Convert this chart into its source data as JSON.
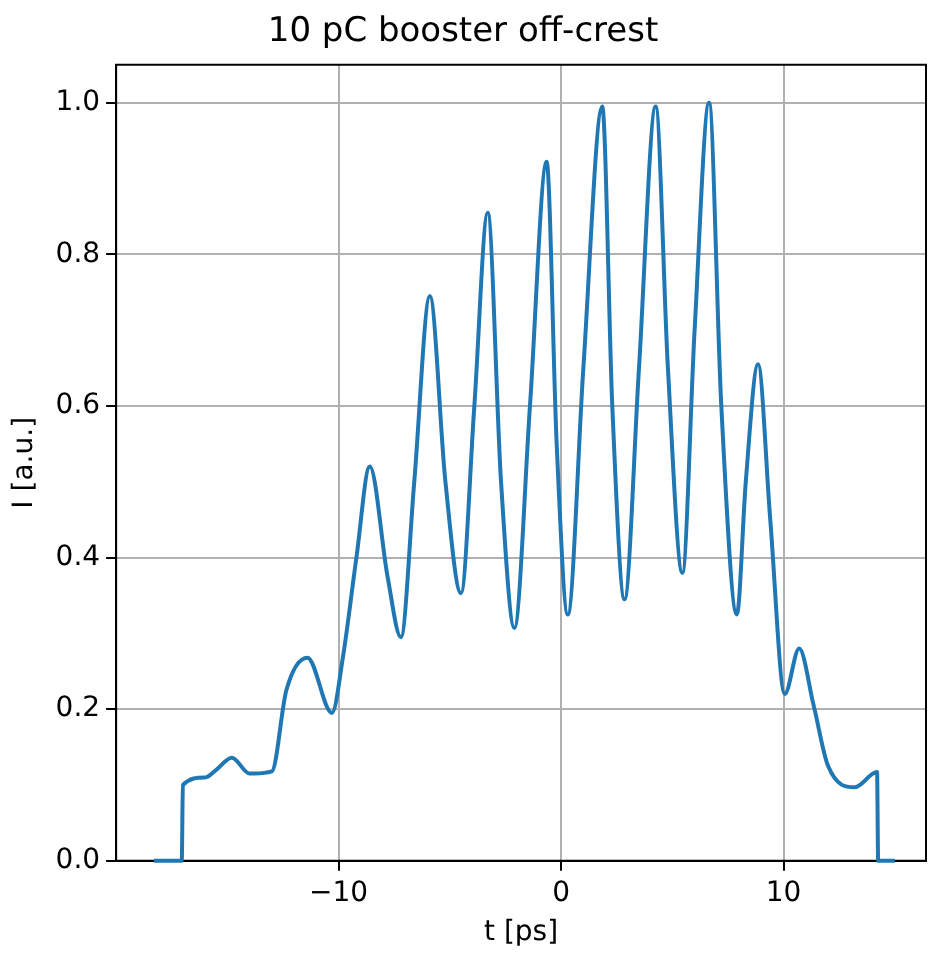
{
  "chart_data": {
    "type": "line",
    "title": "10 pC booster off-crest",
    "xlabel": "t [ps]",
    "ylabel": "I [a.u.]",
    "x": [
      -18.3,
      -17.05,
      -17.0,
      -16.0,
      -15.5,
      -14.8,
      -14.0,
      -13.0,
      -12.35,
      -11.4,
      -10.3,
      -9.8,
      -9.2,
      -8.6,
      -7.8,
      -7.2,
      -6.6,
      -5.9,
      -5.2,
      -4.5,
      -3.9,
      -3.3,
      -2.7,
      -2.1,
      -1.4,
      -0.65,
      -0.2,
      0.3,
      1.0,
      1.85,
      2.3,
      2.85,
      3.5,
      4.25,
      4.8,
      5.45,
      6.0,
      6.65,
      7.2,
      7.9,
      8.3,
      8.85,
      9.4,
      10.05,
      10.7,
      11.35,
      12.0,
      13.2,
      14.2,
      14.25,
      15.0
    ],
    "series": [
      {
        "color": "#1f77b4",
        "values": [
          0,
          0,
          0.1,
          0.11,
          0.12,
          0.136,
          0.115,
          0.118,
          0.225,
          0.268,
          0.195,
          0.27,
          0.4,
          0.52,
          0.375,
          0.295,
          0.5,
          0.745,
          0.5,
          0.353,
          0.6,
          0.855,
          0.5,
          0.307,
          0.6,
          0.922,
          0.55,
          0.325,
          0.65,
          0.995,
          0.6,
          0.345,
          0.65,
          0.995,
          0.65,
          0.38,
          0.7,
          1.0,
          0.6,
          0.325,
          0.5,
          0.655,
          0.45,
          0.22,
          0.28,
          0.205,
          0.125,
          0.097,
          0.117,
          0,
          0
        ]
      }
    ],
    "xlim": [
      -20,
      16.4
    ],
    "ylim": [
      0,
      1.05
    ],
    "xticks": [
      {
        "value": -10,
        "label": "−10"
      },
      0,
      10
    ],
    "yticks": [
      {
        "value": 0,
        "label": "0.0"
      },
      0.2,
      0.4,
      0.6,
      0.8,
      {
        "value": 1,
        "label": "1.0"
      }
    ],
    "grid": true,
    "legend": false,
    "marker": "none",
    "line_style": "solid"
  }
}
